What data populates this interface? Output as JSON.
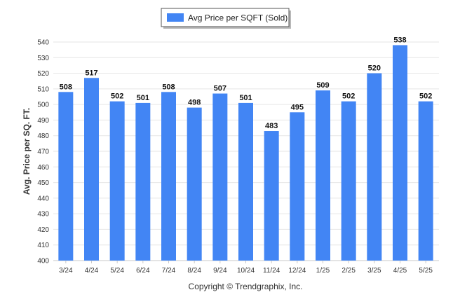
{
  "chart_data": {
    "type": "bar",
    "categories": [
      "3/24",
      "4/24",
      "5/24",
      "6/24",
      "7/24",
      "8/24",
      "9/24",
      "10/24",
      "11/24",
      "12/24",
      "1/25",
      "2/25",
      "3/25",
      "4/25",
      "5/25"
    ],
    "series": [
      {
        "name": "Avg Price per SQFT (Sold)",
        "values": [
          508,
          517,
          502,
          501,
          508,
          498,
          507,
          501,
          483,
          495,
          509,
          502,
          520,
          538,
          502
        ],
        "color": "#4285f4"
      }
    ],
    "ylabel": "Avg. Price per SQ. FT.",
    "xlabel": "",
    "ylim": [
      400,
      540
    ],
    "yticks": [
      400,
      410,
      420,
      430,
      440,
      450,
      460,
      470,
      480,
      490,
      500,
      510,
      520,
      530,
      540
    ],
    "grid": true,
    "legend": "top-center",
    "data_labels": true
  },
  "footer": "Copyright © Trendgraphix, Inc."
}
